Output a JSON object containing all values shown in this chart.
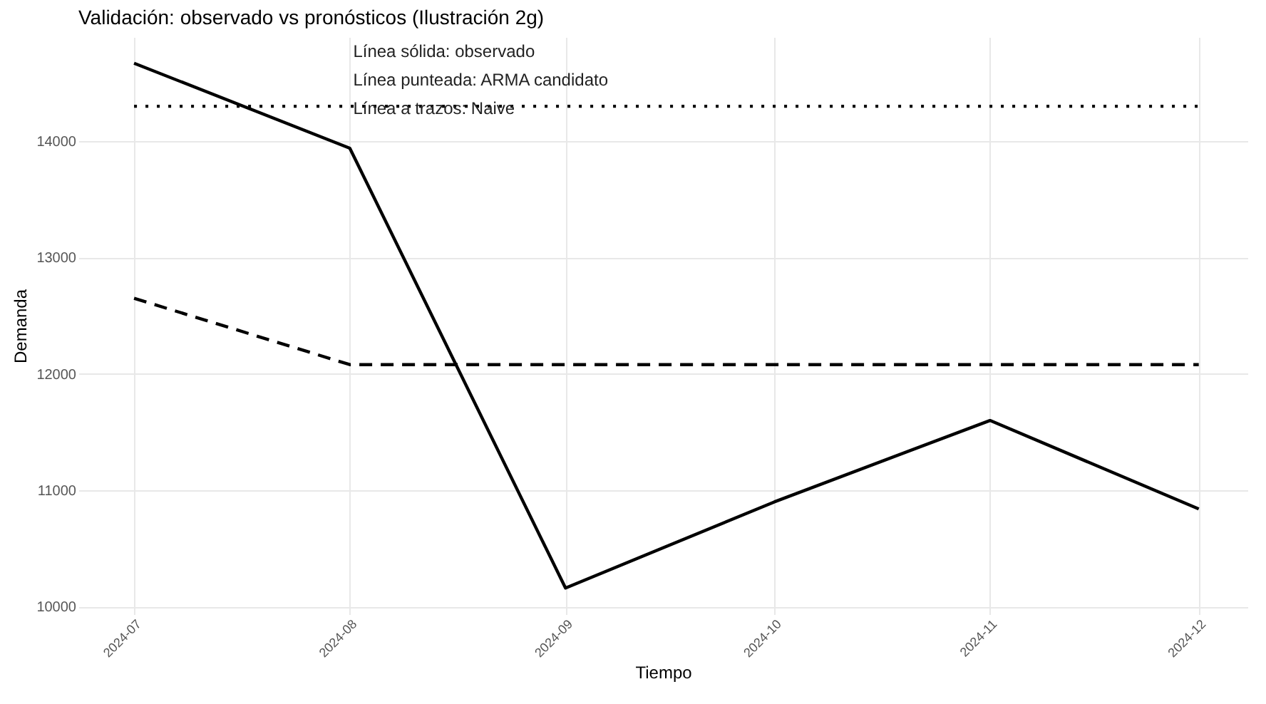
{
  "chart_data": {
    "type": "line",
    "title": "Validación: observado vs pronósticos (Ilustración 2g)",
    "xlabel": "Tiempo",
    "ylabel": "Demanda",
    "x": [
      "2024-07",
      "2024-08",
      "2024-09",
      "2024-10",
      "2024-11",
      "2024-12"
    ],
    "series": [
      {
        "color": "#000000",
        "line_style": "solid",
        "values": [
          14670,
          13940,
          10160,
          10900,
          11600,
          10840
        ]
      },
      {
        "color": "#000000",
        "line_style": "dotted",
        "values": [
          14300,
          14300,
          14300,
          14300,
          14300,
          14300
        ]
      },
      {
        "color": "#000000",
        "line_style": "dashed",
        "values": [
          12650,
          12080,
          12080,
          12080,
          12080,
          12080
        ]
      }
    ],
    "annotations": [
      "Línea sólida: observado",
      "Línea punteada: ARMA candidato",
      "Línea a trazos: Naive"
    ],
    "xlim": [
      "2024-06-23",
      "2024-12-08"
    ],
    "xticks": [
      "2024-07",
      "2024-08",
      "2024-09",
      "2024-10",
      "2024-11",
      "2024-12"
    ],
    "ylim": [
      9935,
      14895
    ],
    "yticks": [
      10000,
      11000,
      12000,
      13000,
      14000
    ],
    "grid": true,
    "marker": "none"
  }
}
